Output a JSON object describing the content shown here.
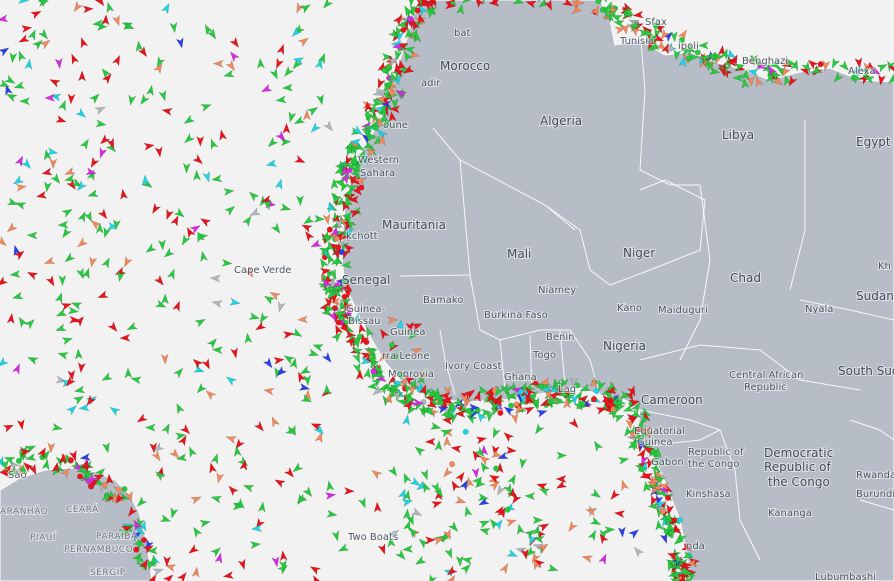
{
  "colors": {
    "ocean": "#f2f2f2",
    "land": "#b6bdc6",
    "border": "#ffffff",
    "ship_cargo": "#27c93f",
    "ship_tanker": "#e8141b",
    "ship_passenger": "#2c3ee8",
    "ship_fishing": "#f08a5d",
    "ship_special": "#1fd3e0",
    "ship_pleasure": "#d62be0",
    "ship_unknown": "#b0b6bc"
  },
  "labels": {
    "countries": [
      {
        "id": "morocco",
        "text": "Morocco"
      },
      {
        "id": "algeria",
        "text": "Algeria"
      },
      {
        "id": "libya",
        "text": "Libya"
      },
      {
        "id": "egypt",
        "text": "Egypt"
      },
      {
        "id": "western-sahara-1",
        "text": "Western"
      },
      {
        "id": "western-sahara-2",
        "text": "Sahara"
      },
      {
        "id": "mauritania",
        "text": "Mauritania"
      },
      {
        "id": "mali",
        "text": "Mali"
      },
      {
        "id": "niger",
        "text": "Niger"
      },
      {
        "id": "chad",
        "text": "Chad"
      },
      {
        "id": "sudan",
        "text": "Sudan"
      },
      {
        "id": "senegal",
        "text": "Senegal"
      },
      {
        "id": "guinea",
        "text": "Guinea"
      },
      {
        "id": "burkina-faso",
        "text": "Burkina Faso"
      },
      {
        "id": "benin",
        "text": "Benin"
      },
      {
        "id": "nigeria",
        "text": "Nigeria"
      },
      {
        "id": "ivory-coast",
        "text": "Ivory Coast"
      },
      {
        "id": "ghana",
        "text": "Ghana"
      },
      {
        "id": "togo",
        "text": "Togo"
      },
      {
        "id": "cameroon",
        "text": "Cameroon"
      },
      {
        "id": "car-1",
        "text": "Central African"
      },
      {
        "id": "car-2",
        "text": "Republic"
      },
      {
        "id": "south-sudan",
        "text": "South Sud"
      },
      {
        "id": "drc-1",
        "text": "Democratic"
      },
      {
        "id": "drc-2",
        "text": "Republic of"
      },
      {
        "id": "drc-3",
        "text": "the Congo"
      },
      {
        "id": "roc-1",
        "text": "Republic of"
      },
      {
        "id": "roc-2",
        "text": "the Congo"
      },
      {
        "id": "gabon",
        "text": "Gabon"
      },
      {
        "id": "eq-guinea-1",
        "text": "Equatorial"
      },
      {
        "id": "eq-guinea-2",
        "text": "Guinea"
      },
      {
        "id": "guinea-bissau-1",
        "text": "Guinea-"
      },
      {
        "id": "guinea-bissau-2",
        "text": "Bissau"
      },
      {
        "id": "sierra-leone",
        "text": "rra Leone"
      },
      {
        "id": "liberia",
        "text": "Monrovia"
      },
      {
        "id": "rwanda",
        "text": "Rwanda"
      },
      {
        "id": "burundi",
        "text": "Burundi"
      },
      {
        "id": "tunisia",
        "text": "Tunisia"
      },
      {
        "id": "kh",
        "text": "Kh"
      }
    ],
    "cities": [
      {
        "id": "bamako",
        "text": "Bamako"
      },
      {
        "id": "niamey",
        "text": "Niamey"
      },
      {
        "id": "kano",
        "text": "Kano"
      },
      {
        "id": "maiduguri",
        "text": "Maiduguri"
      },
      {
        "id": "nyala",
        "text": "Nyala"
      },
      {
        "id": "kinshasa",
        "text": "Kinshasa"
      },
      {
        "id": "kananga",
        "text": "Kananga"
      },
      {
        "id": "nouakchott",
        "text": "kchott"
      },
      {
        "id": "cape-verde",
        "text": "Cape Verde"
      },
      {
        "id": "benghazi",
        "text": "Benghazi"
      },
      {
        "id": "alexandria",
        "text": "Alexa"
      },
      {
        "id": "tripoli",
        "text": "ipoli"
      },
      {
        "id": "sfax",
        "text": "Sfax"
      },
      {
        "id": "rabat",
        "text": "bat"
      },
      {
        "id": "agadir",
        "text": "adir"
      },
      {
        "id": "laayoune",
        "text": "oune"
      },
      {
        "id": "two-boats",
        "text": "Two Boats"
      },
      {
        "id": "lubumbashi",
        "text": "Lubumbashi"
      },
      {
        "id": "luanda",
        "text": "nda"
      },
      {
        "id": "lagos",
        "text": "Lag"
      },
      {
        "id": "sao",
        "text": "São"
      }
    ],
    "regions": [
      {
        "id": "maranhao",
        "text": "ARANHÃO"
      },
      {
        "id": "ceara",
        "text": "CEARÁ"
      },
      {
        "id": "piaui",
        "text": "PIAUÍ"
      },
      {
        "id": "paraiba",
        "text": "PARAÍBA"
      },
      {
        "id": "pernambuco",
        "text": "PERNAMBUCO"
      },
      {
        "id": "sergipe",
        "text": "SERGIP"
      }
    ]
  }
}
